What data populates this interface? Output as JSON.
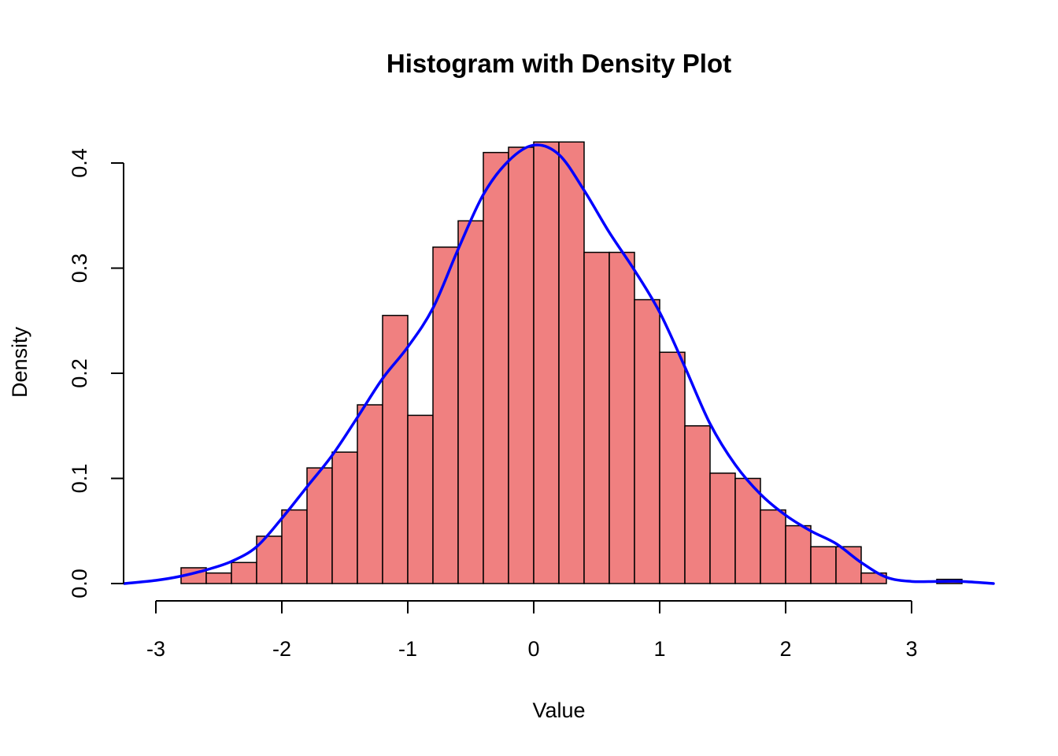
{
  "chart_data": {
    "type": "bar",
    "subtype": "histogram-with-density",
    "title": "Histogram with Density Plot",
    "xlabel": "Value",
    "ylabel": "Density",
    "xlim": [
      -3.3,
      3.7
    ],
    "ylim": [
      0,
      0.42
    ],
    "grid": false,
    "legend": "none",
    "x_ticks": [
      -3,
      -2,
      -1,
      0,
      1,
      2,
      3
    ],
    "x_tick_labels": [
      "-3",
      "-2",
      "-1",
      "0",
      "1",
      "2",
      "3"
    ],
    "y_ticks": [
      0.0,
      0.1,
      0.2,
      0.3,
      0.4
    ],
    "y_tick_labels": [
      "0.0",
      "0.1",
      "0.2",
      "0.3",
      "0.4"
    ],
    "bin_width": 0.2,
    "bins": [
      {
        "start": -3.0,
        "end": -2.8,
        "density": 0.0
      },
      {
        "start": -2.8,
        "end": -2.6,
        "density": 0.015
      },
      {
        "start": -2.6,
        "end": -2.4,
        "density": 0.01
      },
      {
        "start": -2.4,
        "end": -2.2,
        "density": 0.02
      },
      {
        "start": -2.2,
        "end": -2.0,
        "density": 0.045
      },
      {
        "start": -2.0,
        "end": -1.8,
        "density": 0.07
      },
      {
        "start": -1.8,
        "end": -1.6,
        "density": 0.11
      },
      {
        "start": -1.6,
        "end": -1.4,
        "density": 0.125
      },
      {
        "start": -1.4,
        "end": -1.2,
        "density": 0.17
      },
      {
        "start": -1.2,
        "end": -1.0,
        "density": 0.255
      },
      {
        "start": -1.0,
        "end": -0.8,
        "density": 0.16
      },
      {
        "start": -0.8,
        "end": -0.6,
        "density": 0.32
      },
      {
        "start": -0.6,
        "end": -0.4,
        "density": 0.345
      },
      {
        "start": -0.4,
        "end": -0.2,
        "density": 0.41
      },
      {
        "start": -0.2,
        "end": 0.0,
        "density": 0.415
      },
      {
        "start": 0.0,
        "end": 0.2,
        "density": 0.42
      },
      {
        "start": 0.2,
        "end": 0.4,
        "density": 0.42
      },
      {
        "start": 0.4,
        "end": 0.6,
        "density": 0.315
      },
      {
        "start": 0.6,
        "end": 0.8,
        "density": 0.315
      },
      {
        "start": 0.8,
        "end": 1.0,
        "density": 0.27
      },
      {
        "start": 1.0,
        "end": 1.2,
        "density": 0.22
      },
      {
        "start": 1.2,
        "end": 1.4,
        "density": 0.15
      },
      {
        "start": 1.4,
        "end": 1.6,
        "density": 0.105
      },
      {
        "start": 1.6,
        "end": 1.8,
        "density": 0.1
      },
      {
        "start": 1.8,
        "end": 2.0,
        "density": 0.07
      },
      {
        "start": 2.0,
        "end": 2.2,
        "density": 0.055
      },
      {
        "start": 2.2,
        "end": 2.4,
        "density": 0.035
      },
      {
        "start": 2.4,
        "end": 2.6,
        "density": 0.035
      },
      {
        "start": 2.6,
        "end": 2.8,
        "density": 0.01
      },
      {
        "start": 2.8,
        "end": 3.0,
        "density": 0.0
      },
      {
        "start": 3.0,
        "end": 3.2,
        "density": 0.0
      },
      {
        "start": 3.2,
        "end": 3.4,
        "density": 0.004
      }
    ],
    "density_curve": {
      "x": [
        -3.25,
        -3.0,
        -2.8,
        -2.6,
        -2.4,
        -2.2,
        -2.0,
        -1.8,
        -1.6,
        -1.4,
        -1.2,
        -1.0,
        -0.8,
        -0.6,
        -0.4,
        -0.2,
        0.0,
        0.2,
        0.4,
        0.6,
        0.8,
        1.0,
        1.2,
        1.4,
        1.6,
        1.8,
        2.0,
        2.2,
        2.4,
        2.6,
        2.8,
        3.0,
        3.2,
        3.4,
        3.65
      ],
      "y": [
        0.0,
        0.003,
        0.007,
        0.013,
        0.021,
        0.035,
        0.062,
        0.092,
        0.122,
        0.158,
        0.195,
        0.225,
        0.262,
        0.318,
        0.37,
        0.402,
        0.417,
        0.408,
        0.374,
        0.334,
        0.298,
        0.258,
        0.206,
        0.152,
        0.113,
        0.085,
        0.065,
        0.05,
        0.038,
        0.02,
        0.006,
        0.002,
        0.002,
        0.002,
        0.0
      ]
    },
    "colors": {
      "bar_fill": "#F08080",
      "bar_border": "#000000",
      "density_line": "#0000FF"
    }
  }
}
